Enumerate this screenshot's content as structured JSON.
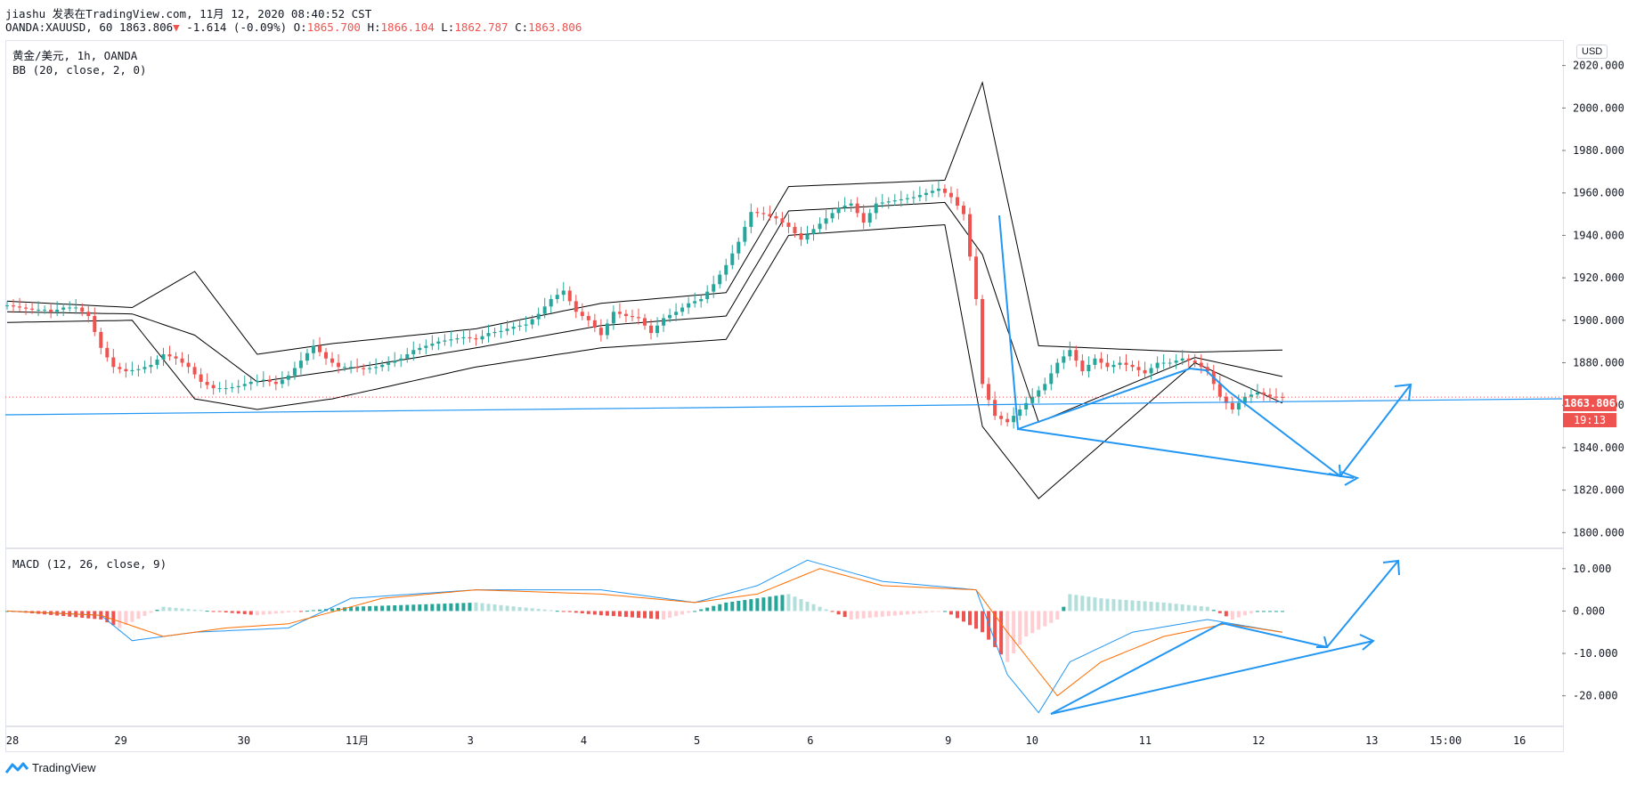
{
  "header": {
    "line1": "jiashu 发表在TradingView.com, 11月 12, 2020 08:40:52 CST",
    "symbol": "OANDA:XAUUSD, 60",
    "last": "1863.806",
    "arrow": "▼",
    "change": "-1.614 (-0.09%)",
    "o_label": "O:",
    "o_val": "1865.700",
    "h_label": "H:",
    "h_val": "1866.104",
    "l_label": "L:",
    "l_val": "1862.787",
    "c_label": "C:",
    "c_val": "1863.806"
  },
  "legend": {
    "main_title": "黄金/美元, 1h, OANDA",
    "bb": "BB (20, close, 2, 0)",
    "macd": "MACD (12, 26, close, 9)"
  },
  "currency_button": "USD",
  "price_tag": "1863.806",
  "countdown_tag": "19:13",
  "brand": "TradingView",
  "colors": {
    "up": "#26a69a",
    "down": "#ef5350",
    "trendline": "#2196f3",
    "macd_line": "#2196f3",
    "signal_line": "#ff6d00",
    "bands": "#000000"
  },
  "chart_data": [
    {
      "type": "candlestick",
      "title": "黄金/美元, 1h, OANDA",
      "ylabel": "USD",
      "ylim": [
        1793,
        2032
      ],
      "y_ticks": [
        "2020.000",
        "2000.000",
        "1980.000",
        "1960.000",
        "1940.000",
        "1920.000",
        "1900.000",
        "1880.000",
        "1860.000",
        "1840.000",
        "1820.000",
        "1800.000"
      ],
      "x_ticks": [
        "28",
        "29",
        "30",
        "11月",
        "3",
        "4",
        "5",
        "6",
        "9",
        "10",
        "11",
        "12",
        "13",
        "15:00",
        "16"
      ],
      "close_series": [
        [
          0,
          1907
        ],
        [
          2,
          1906
        ],
        [
          4,
          1905
        ],
        [
          6,
          1905
        ],
        [
          7,
          1904
        ],
        [
          9,
          1906
        ],
        [
          11,
          1906
        ],
        [
          13,
          1902
        ],
        [
          15,
          1887
        ],
        [
          17,
          1878
        ],
        [
          19,
          1876
        ],
        [
          21,
          1877
        ],
        [
          23,
          1879
        ],
        [
          25,
          1884
        ],
        [
          27,
          1882
        ],
        [
          29,
          1878
        ],
        [
          31,
          1871
        ],
        [
          33,
          1868
        ],
        [
          35,
          1868
        ],
        [
          37,
          1869
        ],
        [
          39,
          1871
        ],
        [
          41,
          1872
        ],
        [
          43,
          1870
        ],
        [
          45,
          1874
        ],
        [
          47,
          1881
        ],
        [
          49,
          1888
        ],
        [
          51,
          1882
        ],
        [
          53,
          1878
        ],
        [
          55,
          1878
        ],
        [
          57,
          1877
        ],
        [
          59,
          1878
        ],
        [
          61,
          1880
        ],
        [
          63,
          1882
        ],
        [
          65,
          1886
        ],
        [
          67,
          1888
        ],
        [
          69,
          1890
        ],
        [
          71,
          1891
        ],
        [
          73,
          1892
        ],
        [
          75,
          1891
        ],
        [
          77,
          1894
        ],
        [
          79,
          1895
        ],
        [
          81,
          1897
        ],
        [
          83,
          1898
        ],
        [
          85,
          1903
        ],
        [
          87,
          1910
        ],
        [
          89,
          1914
        ],
        [
          91,
          1904
        ],
        [
          93,
          1900
        ],
        [
          95,
          1893
        ],
        [
          97,
          1904
        ],
        [
          99,
          1902
        ],
        [
          101,
          1901
        ],
        [
          103,
          1894
        ],
        [
          105,
          1901
        ],
        [
          107,
          1904
        ],
        [
          109,
          1908
        ],
        [
          111,
          1910
        ],
        [
          113,
          1917
        ],
        [
          115,
          1926
        ],
        [
          117,
          1937
        ],
        [
          119,
          1951
        ],
        [
          121,
          1950
        ],
        [
          123,
          1948
        ],
        [
          125,
          1944
        ],
        [
          127,
          1938
        ],
        [
          129,
          1943
        ],
        [
          131,
          1948
        ],
        [
          133,
          1953
        ],
        [
          135,
          1955
        ],
        [
          137,
          1946
        ],
        [
          139,
          1955
        ],
        [
          141,
          1956
        ],
        [
          143,
          1957
        ],
        [
          145,
          1958
        ],
        [
          147,
          1960
        ],
        [
          149,
          1962
        ],
        [
          151,
          1958
        ],
        [
          153,
          1950
        ],
        [
          154,
          1930
        ],
        [
          155,
          1910
        ],
        [
          156,
          1870
        ],
        [
          158,
          1855
        ],
        [
          160,
          1852
        ],
        [
          162,
          1858
        ],
        [
          164,
          1864
        ],
        [
          166,
          1870
        ],
        [
          168,
          1880
        ],
        [
          170,
          1886
        ],
        [
          172,
          1876
        ],
        [
          174,
          1882
        ],
        [
          176,
          1878
        ],
        [
          178,
          1880
        ],
        [
          180,
          1878
        ],
        [
          182,
          1875
        ],
        [
          184,
          1880
        ],
        [
          186,
          1880
        ],
        [
          188,
          1882
        ],
        [
          190,
          1880
        ],
        [
          192,
          1876
        ],
        [
          194,
          1864
        ],
        [
          196,
          1858
        ],
        [
          198,
          1864
        ],
        [
          200,
          1866
        ],
        [
          202,
          1864
        ],
        [
          204,
          1863.806
        ]
      ],
      "bollinger_upper": [
        [
          0,
          1909
        ],
        [
          20,
          1906
        ],
        [
          30,
          1923
        ],
        [
          40,
          1884
        ],
        [
          52,
          1889
        ],
        [
          75,
          1896
        ],
        [
          95,
          1908
        ],
        [
          115,
          1913
        ],
        [
          125,
          1963
        ],
        [
          150,
          1966
        ],
        [
          156,
          2012
        ],
        [
          165,
          1888
        ],
        [
          190,
          1885
        ],
        [
          204,
          1886
        ]
      ],
      "bollinger_lower": [
        [
          0,
          1899
        ],
        [
          20,
          1900
        ],
        [
          30,
          1863
        ],
        [
          40,
          1858
        ],
        [
          52,
          1863
        ],
        [
          75,
          1878
        ],
        [
          95,
          1887
        ],
        [
          115,
          1891
        ],
        [
          125,
          1940
        ],
        [
          150,
          1945
        ],
        [
          156,
          1850
        ],
        [
          165,
          1816
        ],
        [
          190,
          1880
        ],
        [
          204,
          1861
        ]
      ]
    },
    {
      "type": "line",
      "title": "MACD (12, 26, close, 9)",
      "ylim": [
        -27,
        15
      ],
      "y_ticks": [
        "10.000",
        "0.000",
        "-10.000",
        "-20.000"
      ],
      "series": [
        {
          "name": "",
          "values": [
            [
              0,
              0
            ],
            [
              15,
              -1
            ],
            [
              20,
              -7
            ],
            [
              30,
              -5
            ],
            [
              45,
              -4
            ],
            [
              55,
              3
            ],
            [
              75,
              5
            ],
            [
              95,
              5
            ],
            [
              110,
              2
            ],
            [
              120,
              6
            ],
            [
              128,
              12
            ],
            [
              140,
              7
            ],
            [
              155,
              5
            ],
            [
              160,
              -15
            ],
            [
              165,
              -24
            ],
            [
              170,
              -12
            ],
            [
              180,
              -5
            ],
            [
              192,
              -2
            ],
            [
              204,
              -5
            ]
          ]
        },
        {
          "name": "",
          "values": [
            [
              0,
              0
            ],
            [
              15,
              -1
            ],
            [
              25,
              -6
            ],
            [
              35,
              -4
            ],
            [
              45,
              -3
            ],
            [
              60,
              3
            ],
            [
              75,
              5
            ],
            [
              95,
              4
            ],
            [
              110,
              2
            ],
            [
              120,
              4
            ],
            [
              130,
              10
            ],
            [
              140,
              6
            ],
            [
              155,
              5
            ],
            [
              160,
              -5
            ],
            [
              168,
              -20
            ],
            [
              175,
              -12
            ],
            [
              185,
              -6
            ],
            [
              195,
              -3
            ],
            [
              204,
              -5
            ]
          ]
        }
      ],
      "histogram": [
        [
          0,
          0
        ],
        [
          15,
          -2
        ],
        [
          18,
          -4
        ],
        [
          25,
          1
        ],
        [
          40,
          -1
        ],
        [
          55,
          1
        ],
        [
          75,
          2
        ],
        [
          95,
          -1
        ],
        [
          105,
          -2
        ],
        [
          115,
          2
        ],
        [
          125,
          4
        ],
        [
          135,
          -2
        ],
        [
          150,
          0
        ],
        [
          156,
          -5
        ],
        [
          160,
          -12
        ],
        [
          163,
          -6
        ],
        [
          168,
          -2
        ],
        [
          170,
          4
        ],
        [
          175,
          3
        ],
        [
          185,
          2
        ],
        [
          192,
          1
        ],
        [
          196,
          -2
        ],
        [
          200,
          0
        ],
        [
          204,
          0
        ]
      ]
    }
  ]
}
